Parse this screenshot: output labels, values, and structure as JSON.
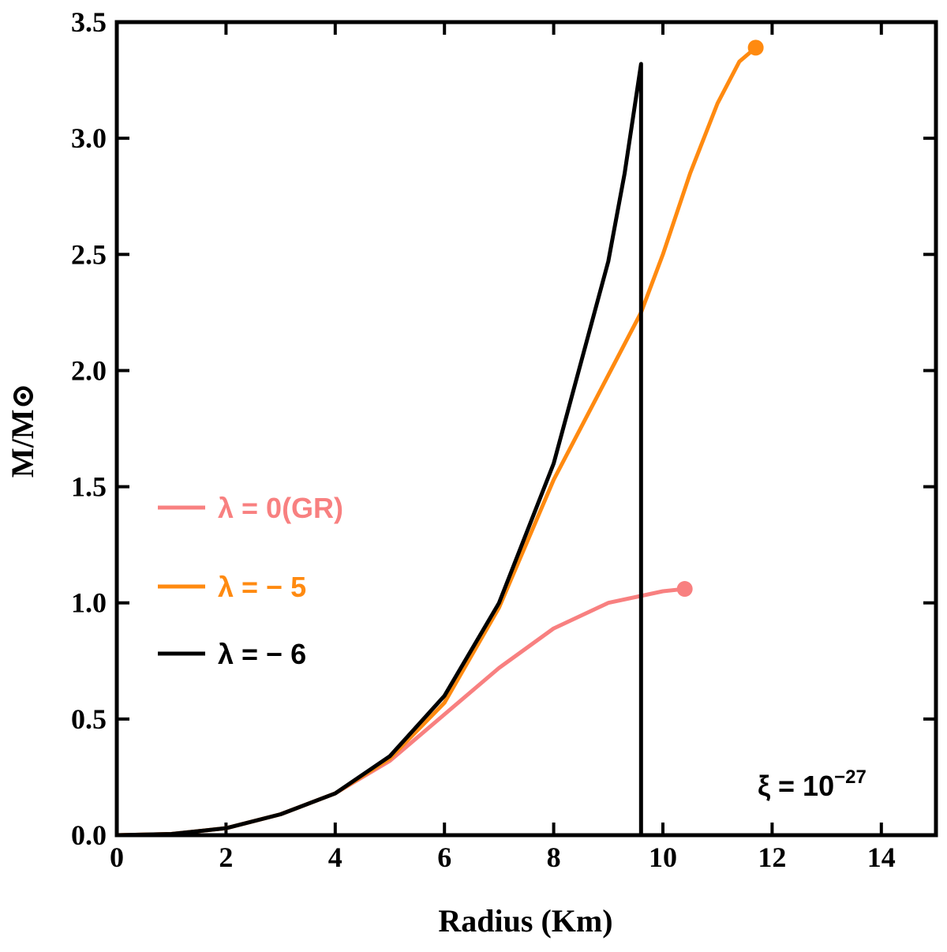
{
  "chart_data": {
    "type": "line",
    "x_label": "Radius (Km)",
    "y_label": "M/M⊙",
    "xlim": [
      0,
      15
    ],
    "xticks": [
      0,
      2,
      4,
      6,
      8,
      10,
      12,
      14
    ],
    "ylim": [
      0,
      3.5
    ],
    "yticks": [
      {
        "value": 0,
        "label": "0.0"
      },
      {
        "value": 0.5,
        "label": "0.5"
      },
      {
        "value": 1,
        "label": "1.0"
      },
      {
        "value": 1.5,
        "label": "1.5"
      },
      {
        "value": 2,
        "label": "2.0"
      },
      {
        "value": 2.5,
        "label": "2.5"
      },
      {
        "value": 3,
        "label": "3.0"
      },
      {
        "value": 3.5,
        "label": "3.5"
      }
    ],
    "legend": "left",
    "annotation": {
      "text": "ξ = 10",
      "superscript": "−27"
    },
    "series": [
      {
        "name": "λ = 0(GR)",
        "color": "#f88080",
        "end_marker": true,
        "x": [
          0,
          1,
          2,
          3,
          4,
          5,
          6,
          7,
          8,
          9,
          10,
          10.4
        ],
        "values": [
          0,
          0.005,
          0.03,
          0.09,
          0.18,
          0.32,
          0.52,
          0.72,
          0.89,
          1.0,
          1.05,
          1.06
        ]
      },
      {
        "name": "λ = − 5",
        "color": "#ff8a10",
        "end_marker": true,
        "x": [
          0,
          1,
          2,
          3,
          4,
          5,
          6,
          7,
          8,
          9,
          9.6,
          10,
          10.5,
          11,
          11.4,
          11.7
        ],
        "values": [
          0,
          0.005,
          0.03,
          0.09,
          0.18,
          0.33,
          0.57,
          0.98,
          1.53,
          1.98,
          2.25,
          2.5,
          2.85,
          3.15,
          3.33,
          3.39
        ]
      },
      {
        "name": "λ = − 6",
        "color": "#000000",
        "end_marker": false,
        "x": [
          0,
          1,
          2,
          3,
          4,
          5,
          6,
          7,
          8,
          9,
          9.3,
          9.6,
          9.6
        ],
        "values": [
          0,
          0.005,
          0.03,
          0.09,
          0.18,
          0.34,
          0.6,
          1.0,
          1.6,
          2.47,
          2.85,
          3.32,
          0
        ]
      }
    ]
  }
}
